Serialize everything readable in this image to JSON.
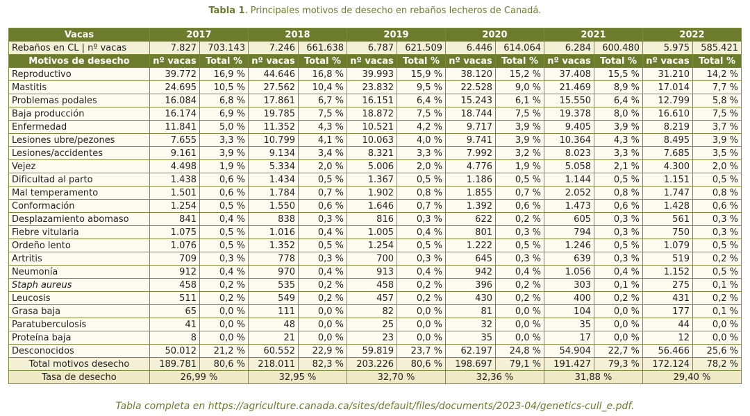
{
  "title": {
    "label": "Tabla 1",
    "text": ". Principales motivos de desecho en rebaños lecheros de Canadá."
  },
  "table": {
    "header": {
      "label": "Vacas",
      "years": [
        "2017",
        "2018",
        "2019",
        "2020",
        "2021",
        "2022"
      ]
    },
    "herds": {
      "label": "Rebaños en CL | nº vacas",
      "values": [
        [
          "7.827",
          "703.143"
        ],
        [
          "7.246",
          "661.638"
        ],
        [
          "6.787",
          "621.509"
        ],
        [
          "6.446",
          "614.064"
        ],
        [
          "6.284",
          "600.480"
        ],
        [
          "5.975",
          "585.421"
        ]
      ]
    },
    "subheader": {
      "label": "Motivos de desecho",
      "cols": [
        "nº vacas",
        "Total %"
      ]
    },
    "rows": [
      [
        "Reproductivo",
        "39.772",
        "16,9 %",
        "44.646",
        "16,8 %",
        "39.993",
        "15,9 %",
        "38.120",
        "15,2 %",
        "37.408",
        "15,5 %",
        "31.210",
        "14,2 %"
      ],
      [
        "Mastitis",
        "24.695",
        "10,5 %",
        "27.562",
        "10,4 %",
        "23.832",
        "9,5 %",
        "22.528",
        "9,0 %",
        "21.469",
        "8,9 %",
        "17.014",
        "7,7 %"
      ],
      [
        "Problemas podales",
        "16.084",
        "6,8 %",
        "17.861",
        "6,7 %",
        "16.151",
        "6,4 %",
        "15.243",
        "6,1 %",
        "15.550",
        "6,4 %",
        "12.799",
        "5,8 %"
      ],
      [
        "Baja producción",
        "16.174",
        "6,9 %",
        "19.785",
        "7,5 %",
        "18.872",
        "7,5 %",
        "18.744",
        "7,5 %",
        "19.378",
        "8,0 %",
        "16.610",
        "7,5 %"
      ],
      [
        "Enfermedad",
        "11.841",
        "5,0 %",
        "11.352",
        "4,3 %",
        "10.521",
        "4,2 %",
        "9.717",
        "3,9 %",
        "9.405",
        "3,9 %",
        "8.219",
        "3,7 %"
      ],
      [
        "Lesiones ubre/pezones",
        "7.655",
        "3,3 %",
        "10.799",
        "4,1 %",
        "10.063",
        "4,0 %",
        "9.741",
        "3,9 %",
        "10.364",
        "4,3 %",
        "8.495",
        "3,9 %"
      ],
      [
        "Lesiones/accidentes",
        "9.161",
        "3,9 %",
        "9.134",
        "3,4 %",
        "8.321",
        "3,3 %",
        "7.992",
        "3,2 %",
        "8.023",
        "3,3 %",
        "7.685",
        "3,5 %"
      ],
      [
        "Vejez",
        "4.498",
        "1,9 %",
        "5.334",
        "2,0 %",
        "5.006",
        "2,0 %",
        "4.776",
        "1,9 %",
        "5.058",
        "2,1 %",
        "4.300",
        "2,0 %"
      ],
      [
        "Dificultad al parto",
        "1.438",
        "0,6 %",
        "1.434",
        "0,5 %",
        "1.367",
        "0,5 %",
        "1.186",
        "0,5 %",
        "1.144",
        "0,5 %",
        "1.151",
        "0,5 %"
      ],
      [
        "Mal temperamento",
        "1.501",
        "0,6 %",
        "1.784",
        "0,7 %",
        "1.902",
        "0,8 %",
        "1.855",
        "0,7 %",
        "2.052",
        "0,8 %",
        "1.747",
        "0,8 %"
      ],
      [
        "Conformación",
        "1.254",
        "0,5 %",
        "1.550",
        "0,6 %",
        "1.646",
        "0,7 %",
        "1.392",
        "0,6 %",
        "1.473",
        "0,6 %",
        "1.428",
        "0,6 %"
      ],
      [
        "Desplazamiento abomaso",
        "841",
        "0,4 %",
        "838",
        "0,3 %",
        "816",
        "0,3 %",
        "622",
        "0,2 %",
        "605",
        "0,3 %",
        "561",
        "0,3 %"
      ],
      [
        "Fiebre vitularia",
        "1.075",
        "0,5 %",
        "1.016",
        "0,4 %",
        "1.005",
        "0,4 %",
        "801",
        "0,3 %",
        "794",
        "0,3 %",
        "750",
        "0,3 %"
      ],
      [
        "Ordeño lento",
        "1.076",
        "0,5 %",
        "1.352",
        "0,5 %",
        "1.254",
        "0,5 %",
        "1.222",
        "0,5 %",
        "1.246",
        "0,5 %",
        "1.079",
        "0,5 %"
      ],
      [
        "Artritis",
        "709",
        "0,3 %",
        "778",
        "0,3 %",
        "700",
        "0,3 %",
        "645",
        "0,3 %",
        "639",
        "0,3 %",
        "519",
        "0,2 %"
      ],
      [
        "Neumonía",
        "912",
        "0,4 %",
        "970",
        "0,4 %",
        "913",
        "0,4 %",
        "942",
        "0,4 %",
        "1.056",
        "0,4 %",
        "1.152",
        "0,5 %"
      ],
      [
        "Staph aureus",
        "458",
        "0,2 %",
        "535",
        "0,2 %",
        "458",
        "0,2 %",
        "396",
        "0,2 %",
        "303",
        "0,1 %",
        "275",
        "0,1 %"
      ],
      [
        "Leucosis",
        "511",
        "0,2 %",
        "549",
        "0,2 %",
        "457",
        "0,2 %",
        "430",
        "0,2 %",
        "400",
        "0,2 %",
        "431",
        "0,2 %"
      ],
      [
        "Grasa baja",
        "65",
        "0,0 %",
        "111",
        "0,0 %",
        "82",
        "0,0 %",
        "81",
        "0,0 %",
        "104",
        "0,0 %",
        "177",
        "0,1 %"
      ],
      [
        "Paratuberculosis",
        "41",
        "0,0 %",
        "48",
        "0,0 %",
        "25",
        "0,0 %",
        "32",
        "0,0 %",
        "35",
        "0,0 %",
        "44",
        "0,0 %"
      ],
      [
        "Proteína baja",
        "8",
        "0,0 %",
        "21",
        "0,0 %",
        "23",
        "0,0 %",
        "35",
        "0,0 %",
        "17",
        "0,0 %",
        "12",
        "0,0 %"
      ],
      [
        "Desconocidos",
        "50.012",
        "21,2 %",
        "60.552",
        "22,9 %",
        "59.819",
        "23,7 %",
        "62.197",
        "24,8 %",
        "54.904",
        "22,7 %",
        "56.466",
        "25,6 %"
      ]
    ],
    "total": [
      "Total motivos desecho",
      "189.781",
      "80,6 %",
      "218.011",
      "82,3 %",
      "203.226",
      "80,6 %",
      "198.697",
      "79,1 %",
      "191.427",
      "79,3 %",
      "172.124",
      "78,2 %"
    ],
    "rate": {
      "label": "Tasa de desecho",
      "values": [
        "26,99 %",
        "32,95 %",
        "32,70 %",
        "32,36 %",
        "31,88 %",
        "29,40 %"
      ]
    }
  },
  "footer": "Tabla completa en https://agriculture.canada.ca/sites/default/files/documents/2023-04/genetics-cull_e.pdf."
}
